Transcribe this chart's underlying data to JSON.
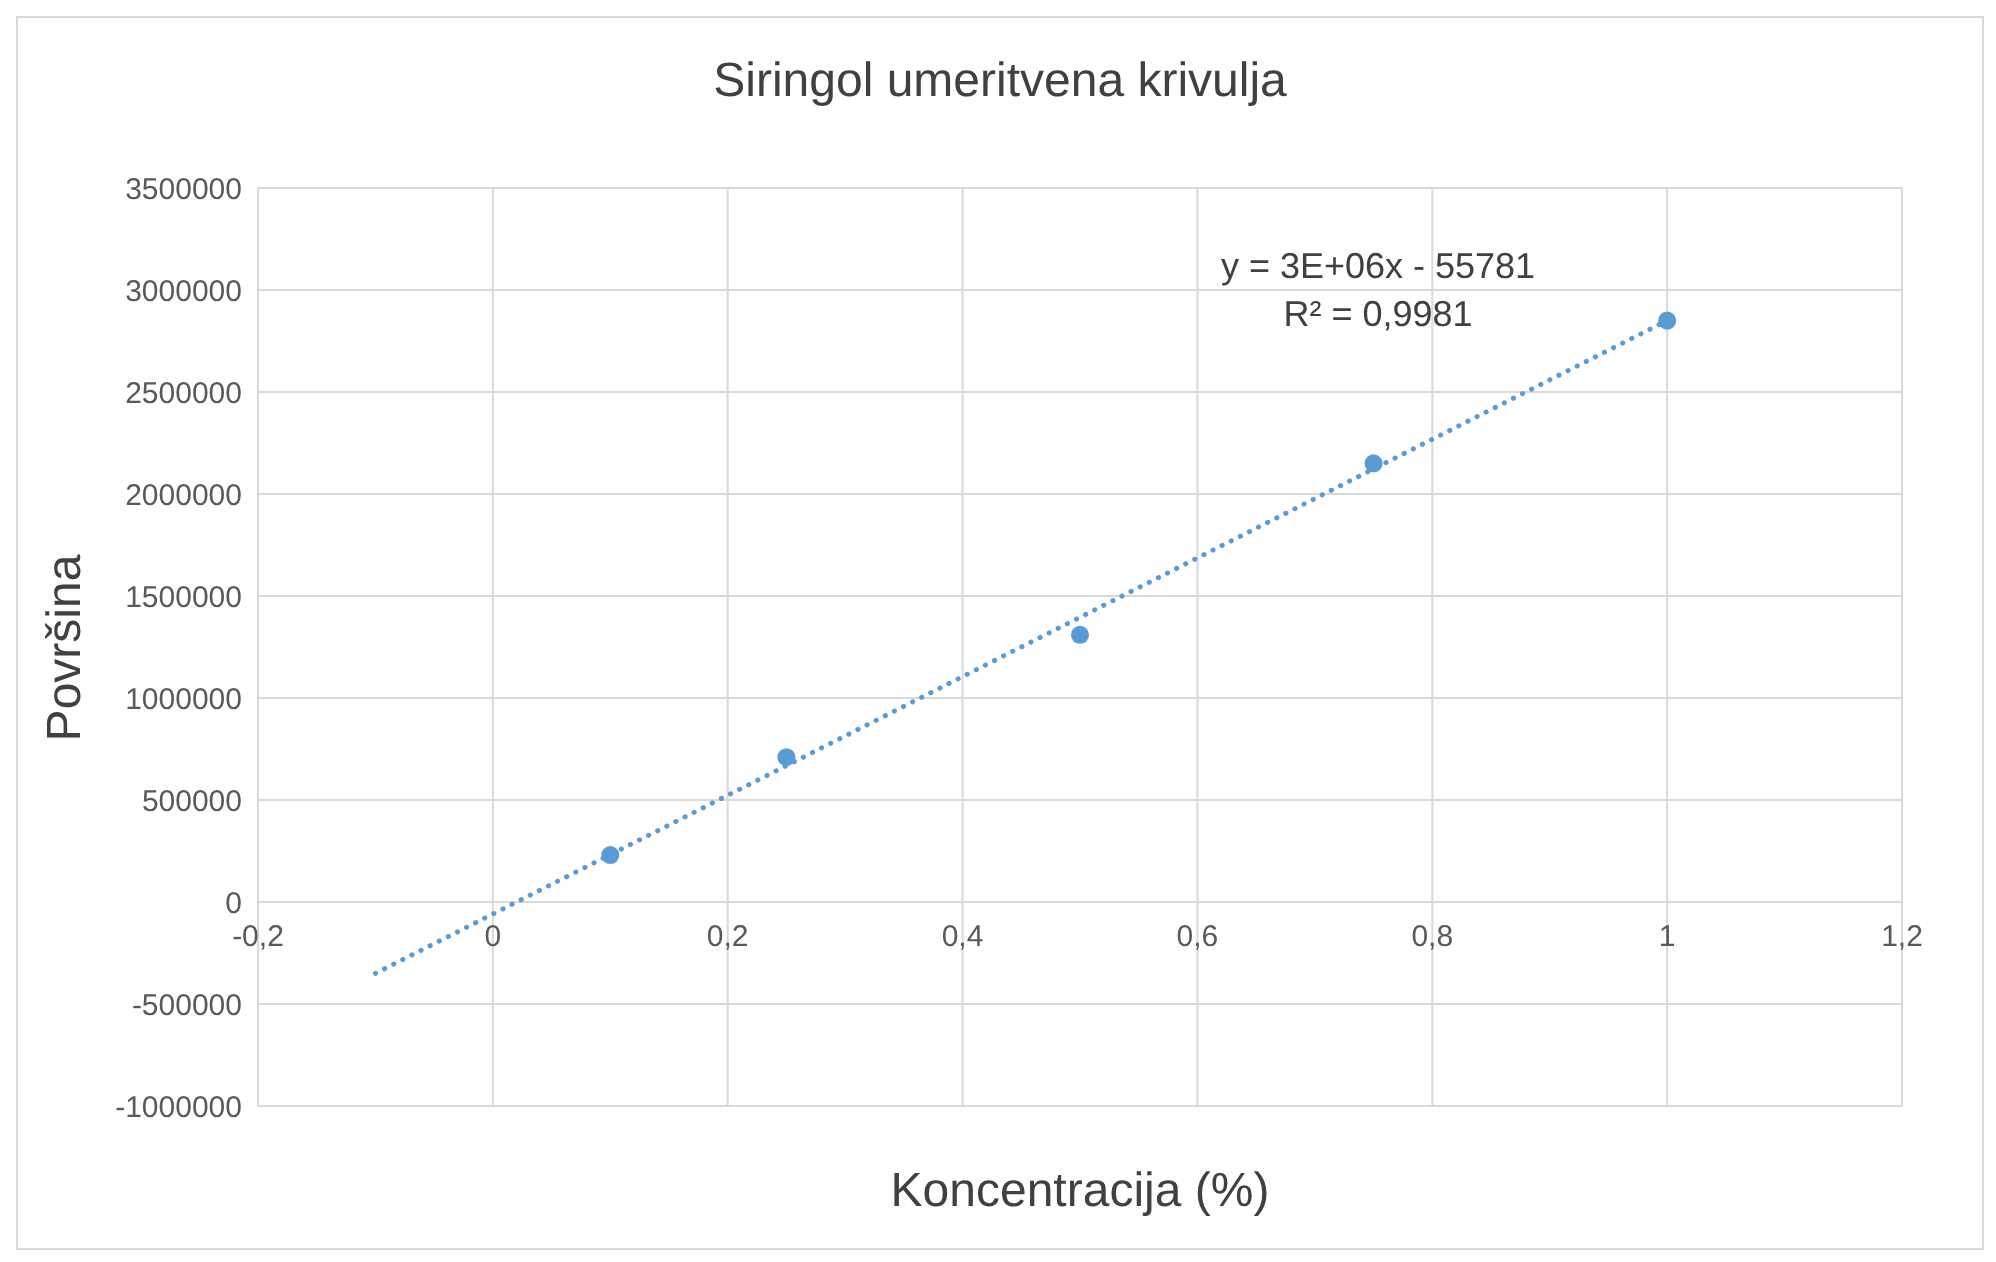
{
  "chart_data": {
    "type": "scatter",
    "title": "Siringol umeritvena krivulja",
    "xlabel": "Koncentracija (%)",
    "ylabel": "Površina",
    "annotations": [
      "y = 3E+06x - 55781",
      "R² = 0,9981"
    ],
    "series": [
      {
        "color": "#5b9bd5",
        "marker": "circle",
        "x": [
          0.1,
          0.25,
          0.5,
          0.75,
          1
        ],
        "values": [
          230000,
          710000,
          1310000,
          2150000,
          2850000
        ]
      },
      {
        "type": "line",
        "color": "#5b9bd5",
        "marker": "none",
        "line_style": "dotted",
        "x": [
          -0.1,
          1
        ],
        "values": [
          -350000,
          2850000
        ]
      }
    ],
    "xlim": [
      -0.2,
      1.2
    ],
    "xticks": [
      {
        "value": -0.2,
        "label": "-0,2"
      },
      0,
      {
        "value": 0.2,
        "label": "0,2"
      },
      {
        "value": 0.4,
        "label": "0,4"
      },
      {
        "value": 0.6,
        "label": "0,6"
      },
      {
        "value": 0.8,
        "label": "0,8"
      },
      1,
      {
        "value": 1.2,
        "label": "1,2"
      }
    ],
    "ylim": [
      -1000000,
      3500000
    ],
    "yticks": [
      -1000000,
      -500000,
      0,
      500000,
      1000000,
      1500000,
      2000000,
      2500000,
      3000000,
      3500000
    ],
    "grid": true
  }
}
